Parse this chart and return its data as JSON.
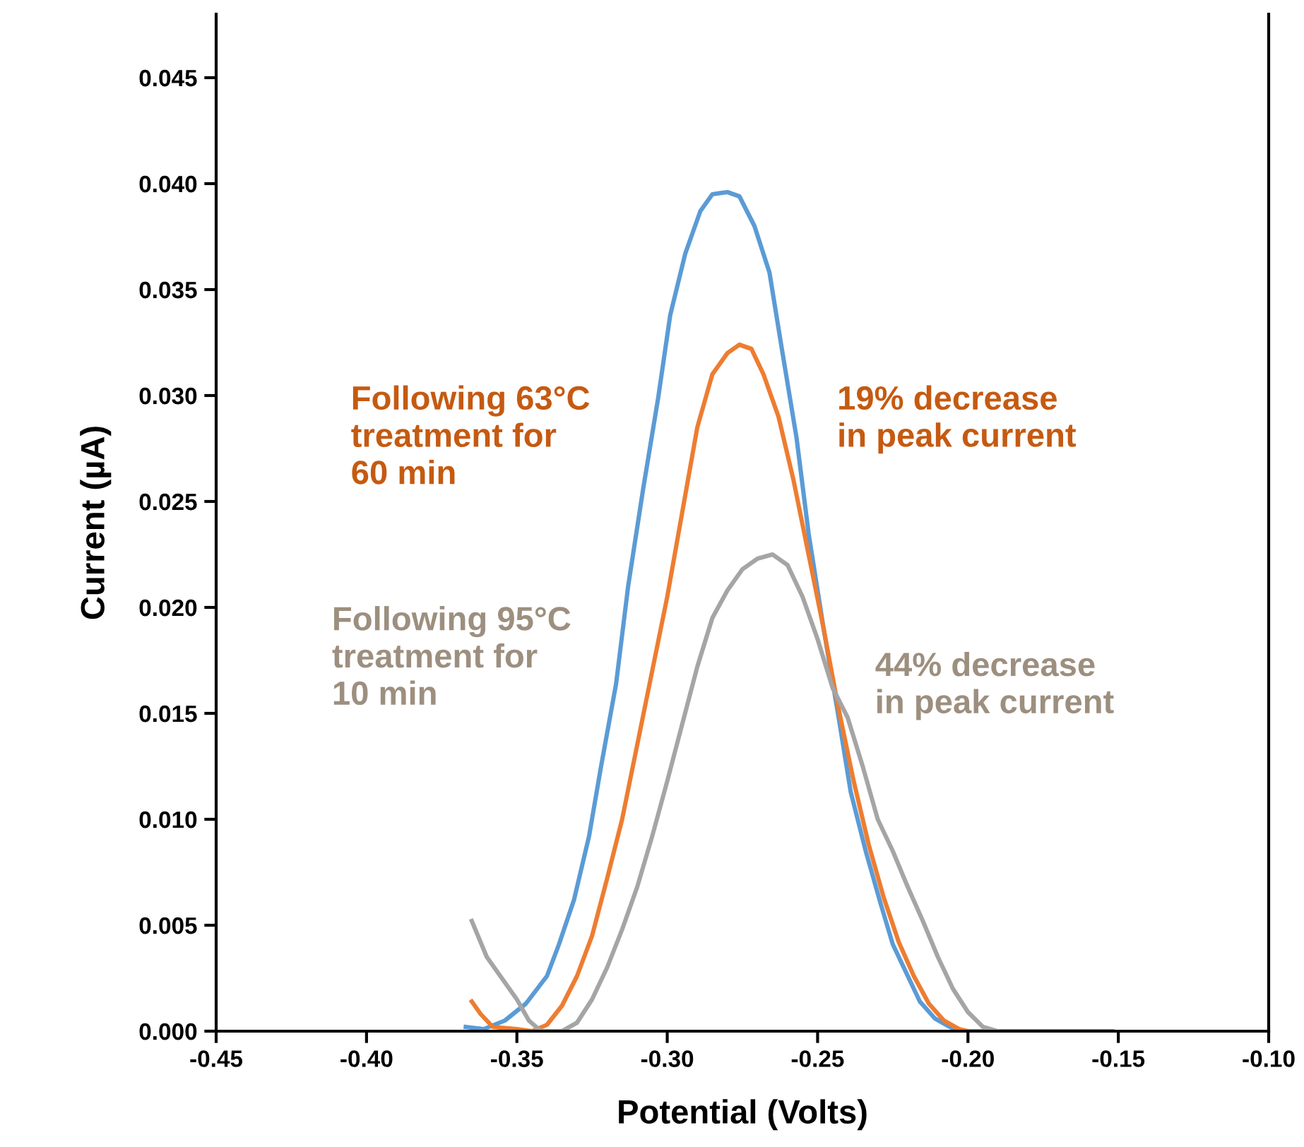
{
  "chart_data": {
    "type": "line",
    "xlabel": "Potential (Volts)",
    "ylabel": "Current (µA)",
    "xlim": [
      -0.45,
      -0.1
    ],
    "ylim": [
      0,
      0.048
    ],
    "xticks": [
      {
        "value": -0.45,
        "label": "-0.45"
      },
      {
        "value": -0.4,
        "label": "-0.40"
      },
      {
        "value": -0.35,
        "label": "-0.35"
      },
      {
        "value": -0.3,
        "label": "-0.30"
      },
      {
        "value": -0.25,
        "label": "-0.25"
      },
      {
        "value": -0.2,
        "label": "-0.20"
      },
      {
        "value": -0.15,
        "label": "-0.15"
      },
      {
        "value": -0.1,
        "label": "-0.10"
      }
    ],
    "yticks": [
      {
        "value": 0,
        "label": "0.000"
      },
      {
        "value": 0.005,
        "label": "0.005"
      },
      {
        "value": 0.01,
        "label": "0.010"
      },
      {
        "value": 0.015,
        "label": "0.015"
      },
      {
        "value": 0.02,
        "label": "0.020"
      },
      {
        "value": 0.025,
        "label": "0.025"
      },
      {
        "value": 0.03,
        "label": "0.030"
      },
      {
        "value": 0.035,
        "label": "0.035"
      },
      {
        "value": 0.04,
        "label": "0.040"
      },
      {
        "value": 0.045,
        "label": "0.045"
      }
    ],
    "grid": false,
    "marker": "none",
    "line_style": "solid",
    "annotations": [
      "Following 63°C\ntreatment for\n60 min",
      "19% decrease\nin peak current",
      "Following 95°C\ntreatment for\n10 min",
      "44% decrease\nin peak current"
    ],
    "series": [
      {
        "color": "#5b9bd5",
        "x": [
          -0.367,
          -0.361,
          -0.354,
          -0.347,
          -0.34,
          -0.336,
          -0.331,
          -0.326,
          -0.322,
          -0.317,
          -0.313,
          -0.308,
          -0.303,
          -0.299,
          -0.294,
          -0.289,
          -0.285,
          -0.28,
          -0.276,
          -0.271,
          -0.266,
          -0.262,
          -0.257,
          -0.253,
          -0.248,
          -0.243,
          -0.239,
          -0.234,
          -0.229,
          -0.225,
          -0.22,
          -0.216,
          -0.211,
          -0.206,
          -0.203
        ],
        "values": [
          0.0002,
          0.0001,
          0.0005,
          0.0013,
          0.0026,
          0.0041,
          0.0062,
          0.0092,
          0.0125,
          0.0164,
          0.021,
          0.0256,
          0.0299,
          0.0338,
          0.0367,
          0.0387,
          0.0395,
          0.0396,
          0.0394,
          0.038,
          0.0358,
          0.0323,
          0.028,
          0.0235,
          0.019,
          0.0148,
          0.0113,
          0.0085,
          0.006,
          0.0041,
          0.0026,
          0.0014,
          0.0006,
          0.0002,
          0.0
        ]
      },
      {
        "color": "#ed7d31",
        "x": [
          -0.365,
          -0.362,
          -0.358,
          -0.35,
          -0.345,
          -0.34,
          -0.335,
          -0.33,
          -0.325,
          -0.32,
          -0.315,
          -0.31,
          -0.305,
          -0.3,
          -0.295,
          -0.29,
          -0.285,
          -0.28,
          -0.276,
          -0.272,
          -0.268,
          -0.263,
          -0.258,
          -0.253,
          -0.248,
          -0.243,
          -0.238,
          -0.233,
          -0.228,
          -0.223,
          -0.218,
          -0.213,
          -0.208,
          -0.203,
          -0.2,
          -0.152
        ],
        "values": [
          0.0014,
          0.0008,
          0.0002,
          0.0001,
          0.0,
          0.0003,
          0.0012,
          0.0026,
          0.0045,
          0.0072,
          0.01,
          0.0135,
          0.017,
          0.0205,
          0.0245,
          0.0285,
          0.031,
          0.032,
          0.0324,
          0.0322,
          0.031,
          0.029,
          0.026,
          0.0225,
          0.019,
          0.0152,
          0.0118,
          0.0088,
          0.0063,
          0.0042,
          0.0026,
          0.0013,
          0.0005,
          0.0001,
          0.0,
          0.0
        ]
      },
      {
        "color": "#a5a5a5",
        "x": [
          -0.365,
          -0.36,
          -0.355,
          -0.35,
          -0.346,
          -0.342,
          -0.335,
          -0.33,
          -0.325,
          -0.32,
          -0.315,
          -0.31,
          -0.305,
          -0.3,
          -0.295,
          -0.29,
          -0.285,
          -0.28,
          -0.275,
          -0.27,
          -0.265,
          -0.26,
          -0.255,
          -0.25,
          -0.245,
          -0.24,
          -0.235,
          -0.23,
          -0.225,
          -0.22,
          -0.215,
          -0.21,
          -0.205,
          -0.2,
          -0.195,
          -0.19
        ],
        "values": [
          0.0052,
          0.0035,
          0.0025,
          0.0015,
          0.0005,
          0.0,
          0.0,
          0.0004,
          0.0015,
          0.003,
          0.0048,
          0.0068,
          0.0092,
          0.0118,
          0.0145,
          0.0172,
          0.0195,
          0.0208,
          0.0218,
          0.0223,
          0.0225,
          0.022,
          0.0205,
          0.0185,
          0.0162,
          0.0148,
          0.0125,
          0.01,
          0.0085,
          0.0068,
          0.0052,
          0.0035,
          0.002,
          0.0009,
          0.0002,
          0.0
        ]
      }
    ]
  }
}
